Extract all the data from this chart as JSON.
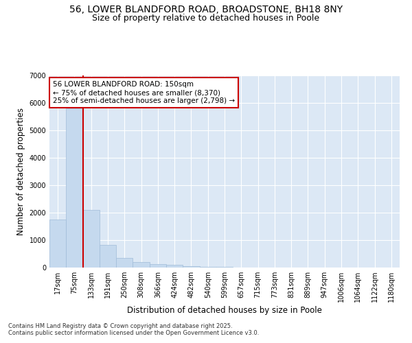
{
  "title": "56, LOWER BLANDFORD ROAD, BROADSTONE, BH18 8NY",
  "subtitle": "Size of property relative to detached houses in Poole",
  "xlabel": "Distribution of detached houses by size in Poole",
  "ylabel": "Number of detached properties",
  "categories": [
    "17sqm",
    "75sqm",
    "133sqm",
    "191sqm",
    "250sqm",
    "308sqm",
    "366sqm",
    "424sqm",
    "482sqm",
    "540sqm",
    "599sqm",
    "657sqm",
    "715sqm",
    "773sqm",
    "831sqm",
    "889sqm",
    "947sqm",
    "1006sqm",
    "1064sqm",
    "1122sqm",
    "1180sqm"
  ],
  "values": [
    1750,
    5800,
    2100,
    820,
    350,
    210,
    120,
    100,
    55,
    30,
    18,
    5,
    2,
    1,
    0,
    0,
    0,
    0,
    0,
    0,
    0
  ],
  "bar_color": "#c5d9ee",
  "bar_edge_color": "#a0bcd8",
  "vline_color": "#cc0000",
  "annotation_text": "56 LOWER BLANDFORD ROAD: 150sqm\n← 75% of detached houses are smaller (8,370)\n25% of semi-detached houses are larger (2,798) →",
  "annotation_box_color": "#cc0000",
  "ylim": [
    0,
    7000
  ],
  "yticks": [
    0,
    1000,
    2000,
    3000,
    4000,
    5000,
    6000,
    7000
  ],
  "background_color": "#dce8f5",
  "grid_color": "#ffffff",
  "footer_text": "Contains HM Land Registry data © Crown copyright and database right 2025.\nContains public sector information licensed under the Open Government Licence v3.0.",
  "title_fontsize": 10,
  "subtitle_fontsize": 9,
  "axis_label_fontsize": 8.5,
  "tick_fontsize": 7,
  "annotation_fontsize": 7.5,
  "footer_fontsize": 6
}
